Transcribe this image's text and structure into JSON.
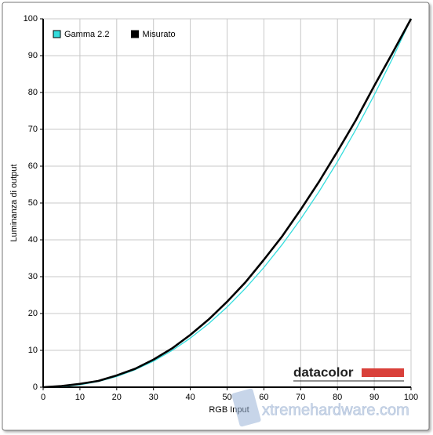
{
  "chart_data": {
    "type": "line",
    "x_label": "RGB Input",
    "y_label": "Luminanza di output",
    "x": [
      0,
      5,
      10,
      15,
      20,
      25,
      30,
      35,
      40,
      45,
      50,
      55,
      60,
      65,
      70,
      75,
      80,
      85,
      90,
      95,
      100
    ],
    "series": [
      {
        "name": "Gamma 2.2",
        "color": "#33dddd",
        "values": [
          0,
          0.14,
          0.63,
          1.54,
          2.9,
          4.74,
          7.07,
          9.93,
          13.32,
          17.26,
          21.76,
          26.84,
          32.5,
          38.76,
          45.63,
          53.11,
          61.21,
          69.94,
          79.31,
          89.33,
          100
        ]
      },
      {
        "name": "Misurato",
        "color": "#000000",
        "values": [
          0,
          0.3,
          0.9,
          1.7,
          3.2,
          5.0,
          7.5,
          10.5,
          14.2,
          18.4,
          23.2,
          28.5,
          34.6,
          41.0,
          48.2,
          55.8,
          64.0,
          72.5,
          81.8,
          90.8,
          100
        ]
      }
    ],
    "xlim": [
      0,
      100
    ],
    "ylim": [
      0,
      100
    ],
    "xticks": [
      0,
      10,
      20,
      30,
      40,
      50,
      60,
      70,
      80,
      90,
      100
    ],
    "yticks": [
      0,
      10,
      20,
      30,
      40,
      50,
      60,
      70,
      80,
      90,
      100
    ],
    "grid": true,
    "legend": "top-left",
    "annotations": [
      "datacolor",
      "xtremehardware.com"
    ]
  }
}
